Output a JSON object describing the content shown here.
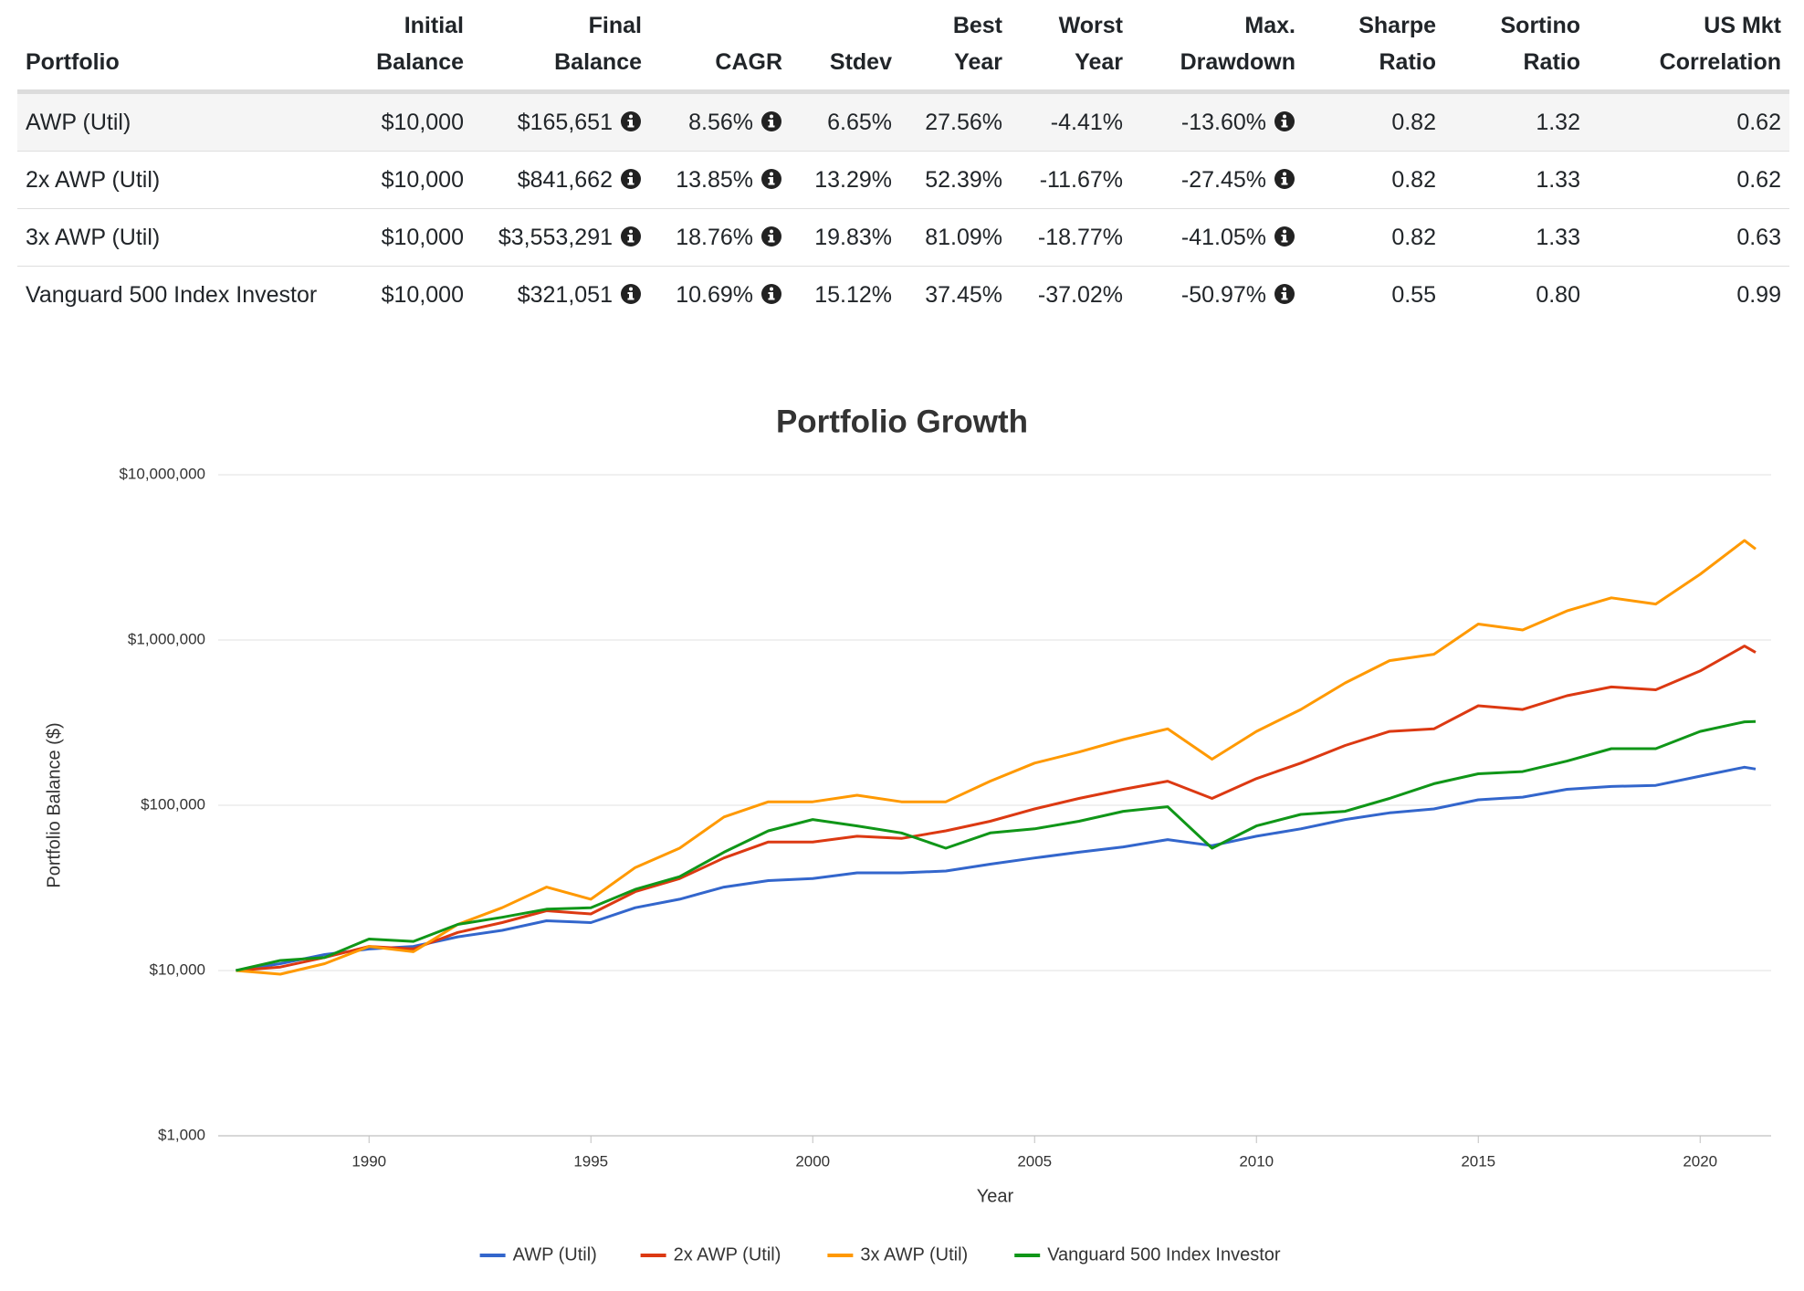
{
  "table": {
    "header": [
      "Portfolio",
      "Initial\nBalance",
      "Final\nBalance",
      "CAGR",
      "Stdev",
      "Best\nYear",
      "Worst\nYear",
      "Max.\nDrawdown",
      "Sharpe\nRatio",
      "Sortino\nRatio",
      "US Mkt\nCorrelation"
    ],
    "rows": [
      [
        "AWP (Util)",
        "$10,000",
        "$165,651",
        "8.56%",
        "6.65%",
        "27.56%",
        "-4.41%",
        "-13.60%",
        "0.82",
        "1.32",
        "0.62"
      ],
      [
        "2x AWP (Util)",
        "$10,000",
        "$841,662",
        "13.85%",
        "13.29%",
        "52.39%",
        "-11.67%",
        "-27.45%",
        "0.82",
        "1.33",
        "0.62"
      ],
      [
        "3x AWP (Util)",
        "$10,000",
        "$3,553,291",
        "18.76%",
        "19.83%",
        "81.09%",
        "-18.77%",
        "-41.05%",
        "0.82",
        "1.33",
        "0.63"
      ],
      [
        "Vanguard 500 Index Investor",
        "$10,000",
        "$321,051",
        "10.69%",
        "15.12%",
        "37.45%",
        "-37.02%",
        "-50.97%",
        "0.55",
        "0.80",
        "0.99"
      ]
    ]
  },
  "chart_data": {
    "type": "line",
    "title": "Portfolio Growth",
    "x_label": "Year",
    "y_label": "Portfolio Balance ($)",
    "log_scale": true,
    "grid": true,
    "legend": "bottom",
    "x": [
      1987,
      1988,
      1989,
      1990,
      1991,
      1992,
      1993,
      1994,
      1995,
      1996,
      1997,
      1998,
      1999,
      2000,
      2001,
      2002,
      2003,
      2004,
      2005,
      2006,
      2007,
      2008,
      2009,
      2010,
      2011,
      2012,
      2013,
      2014,
      2015,
      2016,
      2017,
      2018,
      2019,
      2020,
      2021,
      2021.25
    ],
    "xlim": [
      1986.6,
      2021.6
    ],
    "xticks": [
      1990,
      1995,
      2000,
      2005,
      2010,
      2015,
      2020
    ],
    "ylim": [
      1000,
      10000000
    ],
    "yticks": [
      {
        "value": 1000,
        "label": "$1,000"
      },
      {
        "value": 10000,
        "label": "$10,000"
      },
      {
        "value": 100000,
        "label": "$100,000"
      },
      {
        "value": 1000000,
        "label": "$1,000,000"
      },
      {
        "value": 10000000,
        "label": "$10,000,000"
      }
    ],
    "series": [
      {
        "name": "AWP (Util)",
        "color": "#3366cc",
        "values": [
          10000,
          11000,
          12500,
          13500,
          14000,
          16000,
          17500,
          20000,
          19500,
          24000,
          27000,
          32000,
          35000,
          36000,
          39000,
          39000,
          40000,
          44000,
          48000,
          52000,
          56000,
          62000,
          57000,
          65000,
          72000,
          82000,
          90000,
          95000,
          108000,
          112000,
          125000,
          130000,
          132000,
          150000,
          170000,
          165651
        ]
      },
      {
        "name": "2x AWP (Util)",
        "color": "#dc3912",
        "values": [
          10000,
          10500,
          12000,
          14000,
          13500,
          17000,
          19500,
          23000,
          22000,
          30000,
          36000,
          48000,
          60000,
          60000,
          65000,
          63000,
          70000,
          80000,
          95000,
          110000,
          125000,
          140000,
          110000,
          145000,
          180000,
          230000,
          280000,
          290000,
          400000,
          380000,
          460000,
          520000,
          500000,
          650000,
          920000,
          841662
        ]
      },
      {
        "name": "3x AWP (Util)",
        "color": "#ff9900",
        "values": [
          10000,
          9500,
          11000,
          14000,
          13000,
          19000,
          24000,
          32000,
          27000,
          42000,
          55000,
          85000,
          105000,
          105000,
          115000,
          105000,
          105000,
          140000,
          180000,
          210000,
          250000,
          290000,
          190000,
          280000,
          380000,
          550000,
          750000,
          820000,
          1250000,
          1150000,
          1500000,
          1800000,
          1650000,
          2500000,
          4000000,
          3553291
        ]
      },
      {
        "name": "Vanguard 500 Index Investor",
        "color": "#109618",
        "values": [
          10000,
          11500,
          12000,
          15500,
          15000,
          19000,
          21000,
          23500,
          24000,
          31000,
          37000,
          52000,
          70000,
          82000,
          75000,
          68000,
          55000,
          68000,
          72000,
          80000,
          92000,
          98000,
          55000,
          75000,
          88000,
          92000,
          110000,
          135000,
          155000,
          160000,
          185000,
          220000,
          220000,
          280000,
          320000,
          321051
        ]
      }
    ]
  }
}
